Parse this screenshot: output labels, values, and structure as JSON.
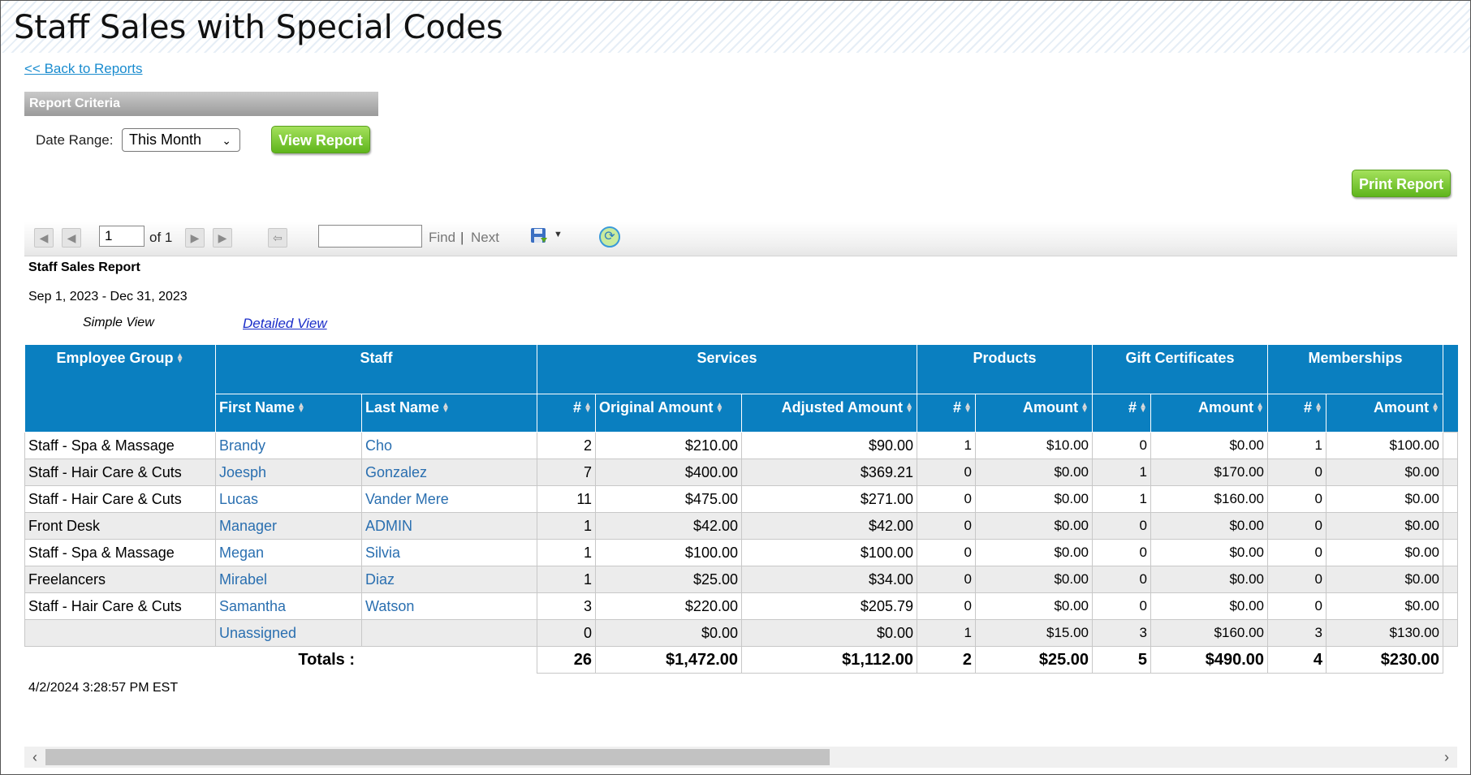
{
  "page": {
    "title": "Staff Sales with Special Codes",
    "back_link": "<< Back to Reports"
  },
  "criteria": {
    "header": "Report Criteria",
    "date_range_label": "Date Range:",
    "date_range_value": "This Month",
    "view_button": "View Report",
    "print_button": "Print Report"
  },
  "toolbar": {
    "page_value": "1",
    "of_text": "of 1",
    "find": "Find",
    "separator": "|",
    "next": "Next"
  },
  "report": {
    "title": "Staff Sales Report",
    "dates": "Sep 1, 2023 - Dec 31, 2023",
    "simple_view": "Simple View",
    "detailed_view": "Detailed View",
    "timestamp": "4/2/2024 3:28:57 PM EST"
  },
  "table": {
    "groups": {
      "employee_group": "Employee Group",
      "staff": "Staff",
      "services": "Services",
      "products": "Products",
      "gift_certificates": "Gift Certificates",
      "memberships": "Memberships"
    },
    "subheaders": {
      "first_name": "First Name",
      "last_name": "Last Name",
      "svc_count": "#",
      "original_amount": "Original Amount",
      "adjusted_amount": "Adjusted Amount",
      "prod_count": "#",
      "prod_amount": "Amount",
      "gc_count": "#",
      "gc_amount": "Amount",
      "mem_count": "#",
      "mem_amount": "Amount"
    },
    "rows": [
      {
        "group": "Staff - Spa & Massage",
        "first": "Brandy",
        "last": "Cho",
        "svc": "2",
        "orig": "$210.00",
        "adj": "$90.00",
        "pc": "1",
        "pa": "$10.00",
        "gc": "0",
        "ga": "$0.00",
        "mc": "1",
        "ma": "$100.00"
      },
      {
        "group": "Staff - Hair Care & Cuts",
        "first": "Joesph",
        "last": "Gonzalez",
        "svc": "7",
        "orig": "$400.00",
        "adj": "$369.21",
        "pc": "0",
        "pa": "$0.00",
        "gc": "1",
        "ga": "$170.00",
        "mc": "0",
        "ma": "$0.00"
      },
      {
        "group": "Staff - Hair Care & Cuts",
        "first": "Lucas",
        "last": "Vander Mere",
        "svc": "11",
        "orig": "$475.00",
        "adj": "$271.00",
        "pc": "0",
        "pa": "$0.00",
        "gc": "1",
        "ga": "$160.00",
        "mc": "0",
        "ma": "$0.00"
      },
      {
        "group": "Front Desk",
        "first": "Manager",
        "last": "ADMIN",
        "svc": "1",
        "orig": "$42.00",
        "adj": "$42.00",
        "pc": "0",
        "pa": "$0.00",
        "gc": "0",
        "ga": "$0.00",
        "mc": "0",
        "ma": "$0.00"
      },
      {
        "group": "Staff - Spa & Massage",
        "first": "Megan",
        "last": "Silvia",
        "svc": "1",
        "orig": "$100.00",
        "adj": "$100.00",
        "pc": "0",
        "pa": "$0.00",
        "gc": "0",
        "ga": "$0.00",
        "mc": "0",
        "ma": "$0.00"
      },
      {
        "group": "Freelancers",
        "first": "Mirabel",
        "last": "Diaz",
        "svc": "1",
        "orig": "$25.00",
        "adj": "$34.00",
        "pc": "0",
        "pa": "$0.00",
        "gc": "0",
        "ga": "$0.00",
        "mc": "0",
        "ma": "$0.00"
      },
      {
        "group": "Staff - Hair Care & Cuts",
        "first": "Samantha",
        "last": "Watson",
        "svc": "3",
        "orig": "$220.00",
        "adj": "$205.79",
        "pc": "0",
        "pa": "$0.00",
        "gc": "0",
        "ga": "$0.00",
        "mc": "0",
        "ma": "$0.00"
      },
      {
        "group": "",
        "first": "Unassigned",
        "last": "",
        "svc": "0",
        "orig": "$0.00",
        "adj": "$0.00",
        "pc": "1",
        "pa": "$15.00",
        "gc": "3",
        "ga": "$160.00",
        "mc": "3",
        "ma": "$130.00"
      }
    ],
    "totals": {
      "label": "Totals :",
      "svc": "26",
      "orig": "$1,472.00",
      "adj": "$1,112.00",
      "pc": "2",
      "pa": "$25.00",
      "gc": "5",
      "ga": "$490.00",
      "mc": "4",
      "ma": "$230.00"
    }
  },
  "colors": {
    "header_blue": "#0a7fc0",
    "link_blue": "#2a6fb0",
    "button_green": "#6cc026"
  }
}
